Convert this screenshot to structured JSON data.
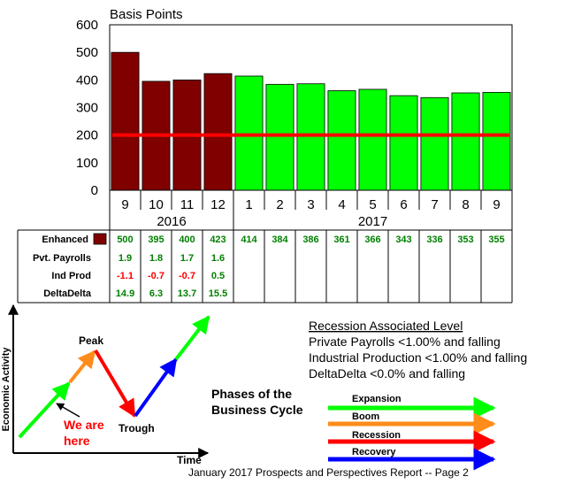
{
  "chart_data": {
    "type": "bar",
    "title": "Basis Points",
    "categories": [
      "9",
      "10",
      "11",
      "12",
      "1",
      "2",
      "3",
      "4",
      "5",
      "6",
      "7",
      "8",
      "9"
    ],
    "years": [
      {
        "label": "2016",
        "categories": [
          "9",
          "10",
          "11",
          "12"
        ]
      },
      {
        "label": "2017",
        "categories": [
          "1",
          "2",
          "3",
          "4",
          "5",
          "6",
          "7",
          "8",
          "9"
        ]
      }
    ],
    "values": [
      500,
      395,
      400,
      423,
      414,
      384,
      386,
      361,
      366,
      343,
      336,
      353,
      355
    ],
    "bar_colors": [
      "#800000",
      "#800000",
      "#800000",
      "#800000",
      "#00ff00",
      "#00ff00",
      "#00ff00",
      "#00ff00",
      "#00ff00",
      "#00ff00",
      "#00ff00",
      "#00ff00",
      "#00ff00"
    ],
    "reference_line": {
      "value": 200,
      "color": "#ff0000"
    },
    "ylim": [
      0,
      600
    ],
    "yticks": [
      0,
      100,
      200,
      300,
      400,
      500,
      600
    ],
    "grid": false
  },
  "table": {
    "rows": [
      {
        "label": "Enhanced",
        "swatch": "#800000",
        "values": [
          "500",
          "395",
          "400",
          "423",
          "414",
          "384",
          "386",
          "361",
          "366",
          "343",
          "336",
          "353",
          "355"
        ]
      },
      {
        "label": "Pvt. Payrolls",
        "values": [
          "1.9",
          "1.8",
          "1.7",
          "1.6"
        ]
      },
      {
        "label": "Ind Prod",
        "values": [
          "-1.1",
          "-0.7",
          "-0.7",
          "0.5"
        ]
      },
      {
        "label": "DeltaDelta",
        "values": [
          "14.9",
          "6.3",
          "13.7",
          "15.5"
        ]
      }
    ],
    "positive_color": "#008000",
    "negative_color": "#ff0000"
  },
  "cycle_diagram": {
    "y_axis_label": "Economic Activity",
    "x_axis_label": "Time",
    "peak_label": "Peak",
    "trough_label": "Trough",
    "we_are_here": [
      "We are",
      "here"
    ],
    "title_lines": [
      "Phases of the",
      "Business Cycle"
    ]
  },
  "legend": {
    "items": [
      {
        "label": "Expansion",
        "color": "#00ff00"
      },
      {
        "label": "Boom",
        "color": "#ff8c1a"
      },
      {
        "label": "Recession",
        "color": "#ff0000"
      },
      {
        "label": "Recovery",
        "color": "#0000ff"
      }
    ]
  },
  "recession_levels": {
    "heading": "Recession Associated Level",
    "lines": [
      "Private Payrolls <1.00% and falling",
      "Industrial Production <1.00% and falling",
      "DeltaDelta <0.0% and falling"
    ]
  },
  "footer": "January 2017 Prospects and Perspectives Report -- Page 2"
}
